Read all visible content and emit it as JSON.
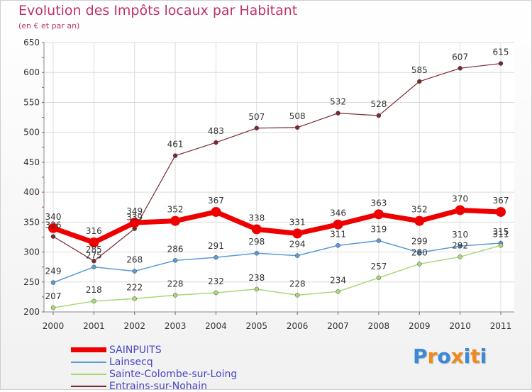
{
  "chart_data": {
    "type": "line",
    "title": "Evolution des Impôts locaux par Habitant",
    "subtitle": "(en € et par an)",
    "x": [
      "2000",
      "2001",
      "2002",
      "2003",
      "2004",
      "2005",
      "2006",
      "2007",
      "2008",
      "2009",
      "2010",
      "2011"
    ],
    "ylim": [
      200,
      650
    ],
    "yticks": [
      200,
      250,
      300,
      350,
      400,
      450,
      500,
      550,
      600,
      650
    ],
    "grid": true,
    "legend_position": "bottom-left",
    "series": [
      {
        "name": "SAINPUITS",
        "color": "#ee0000",
        "width": 7,
        "values": [
          340,
          316,
          349,
          352,
          367,
          338,
          331,
          346,
          363,
          352,
          370,
          367
        ]
      },
      {
        "name": "Lainsecq",
        "color": "#5b9bd5",
        "width": 1.5,
        "values": [
          249,
          275,
          268,
          286,
          291,
          298,
          294,
          311,
          319,
          299,
          310,
          315
        ]
      },
      {
        "name": "Sainte-Colombe-sur-Loing",
        "color": "#a8d878",
        "width": 1.5,
        "values": [
          207,
          218,
          222,
          228,
          232,
          238,
          228,
          234,
          257,
          280,
          292,
          311
        ]
      },
      {
        "name": "Entrains-sur-Nohain",
        "color": "#7a2830",
        "width": 1.2,
        "values": [
          326,
          285,
          339,
          461,
          483,
          507,
          508,
          532,
          528,
          585,
          607,
          615
        ]
      }
    ],
    "data_labels": [
      {
        "series": 0,
        "values": [
          "340",
          "316",
          "349",
          "352",
          "367",
          "338",
          "331",
          "346",
          "363",
          "352",
          "370",
          "367"
        ]
      },
      {
        "series": 1,
        "values": [
          "249",
          "275",
          "268",
          "286",
          "291",
          "298",
          "294",
          "311",
          "319",
          "299",
          "310",
          "315"
        ]
      },
      {
        "series": 2,
        "values": [
          "207",
          "218",
          "222",
          "228",
          "232",
          "238",
          "228",
          "234",
          "257",
          "280",
          "292",
          "311"
        ]
      },
      {
        "series": 3,
        "values": [
          "326",
          "285",
          "339",
          "461",
          "483",
          "507",
          "508",
          "532",
          "528",
          "585",
          "607",
          "615"
        ]
      }
    ]
  },
  "logo": {
    "letters": [
      "P",
      "r",
      "o",
      "x",
      "i",
      "t",
      "i"
    ],
    "colors": [
      "#3a8ad8",
      "#f08a1c",
      "#3a8ad8",
      "#f08a1c",
      "#3a8ad8",
      "#f08a1c",
      "#3a8ad8"
    ]
  }
}
